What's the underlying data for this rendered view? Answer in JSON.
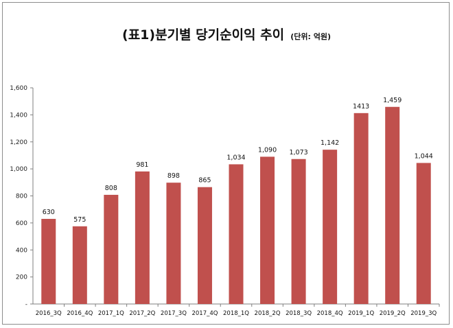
{
  "chart_data": {
    "type": "bar",
    "title": "(표1)분기별 당기순이익 추이",
    "unit": "(단위: 억원)",
    "xlabel": "",
    "ylabel": "",
    "ylim": [
      0,
      1600
    ],
    "yticks": [
      "-",
      "200",
      "400",
      "600",
      "800",
      "1,000",
      "1,200",
      "1,400",
      "1,600"
    ],
    "grid": false,
    "legend": "none",
    "bar_color": "#c0504d",
    "categories": [
      "2016_3Q",
      "2016_4Q",
      "2017_1Q",
      "2017_2Q",
      "2017_3Q",
      "2017_4Q",
      "2018_1Q",
      "2018_2Q",
      "2018_3Q",
      "2018_4Q",
      "2019_1Q",
      "2019_2Q",
      "2019_3Q"
    ],
    "values": [
      630,
      575,
      808,
      981,
      898,
      865,
      1034,
      1090,
      1073,
      1142,
      1413,
      1459,
      1044
    ],
    "data_labels": [
      "630",
      "575",
      "808",
      "981",
      "898",
      "865",
      "1,034",
      "1,090",
      "1,073",
      "1,142",
      "1413",
      "1,459",
      "1,044"
    ]
  }
}
